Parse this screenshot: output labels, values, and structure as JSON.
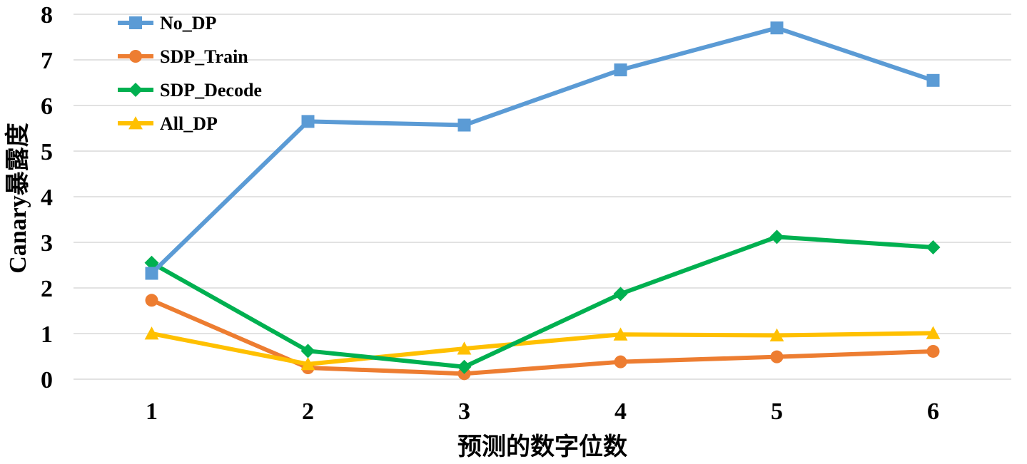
{
  "chart_data": {
    "type": "line",
    "xlabel": "预测的数字位数",
    "ylabel": "Canary暴露度",
    "categories": [
      "1",
      "2",
      "3",
      "4",
      "5",
      "6"
    ],
    "ylim": [
      0,
      8
    ],
    "yticks": [
      "0",
      "1",
      "2",
      "3",
      "4",
      "5",
      "6",
      "7",
      "8"
    ],
    "grid": "horizontal",
    "legend_position": "top-left",
    "series": [
      {
        "name": "No_DP",
        "color": "#5B9BD5",
        "marker": "square",
        "values": [
          2.32,
          5.65,
          5.57,
          6.78,
          7.7,
          6.55
        ]
      },
      {
        "name": "SDP_Train",
        "color": "#ED7D31",
        "marker": "circle",
        "values": [
          1.73,
          0.25,
          0.12,
          0.38,
          0.49,
          0.61
        ]
      },
      {
        "name": "SDP_Decode",
        "color": "#00B050",
        "marker": "diamond",
        "values": [
          2.55,
          0.62,
          0.27,
          1.87,
          3.12,
          2.89
        ]
      },
      {
        "name": "All_DP",
        "color": "#FFC000",
        "marker": "triangle",
        "values": [
          1.0,
          0.33,
          0.67,
          0.98,
          0.96,
          1.01
        ]
      }
    ]
  }
}
